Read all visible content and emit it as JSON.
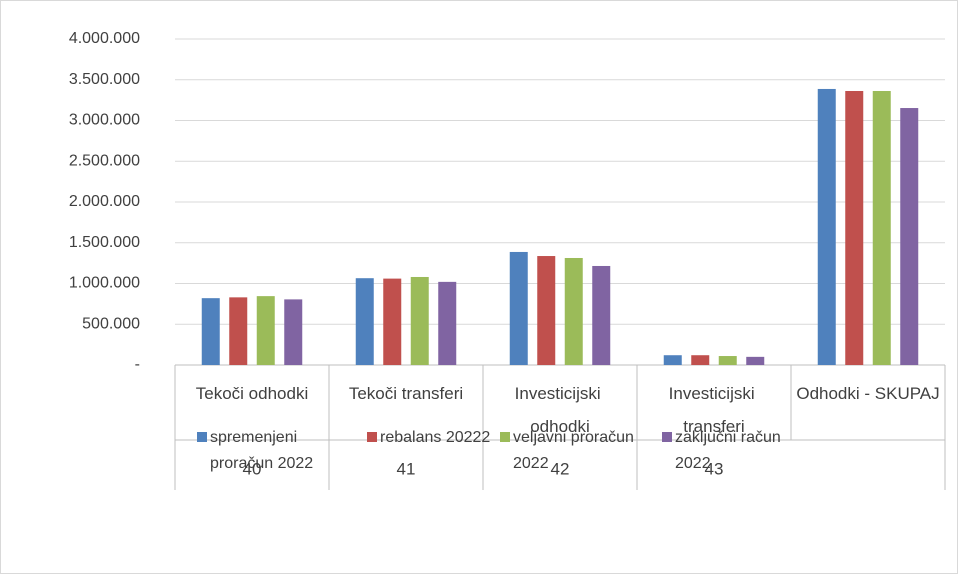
{
  "chart_data": {
    "type": "bar",
    "categories": [
      "Tekoči odhodki",
      "Tekoči transferi",
      "Investicijski odhodki",
      "Investicijski transferi",
      "Odhodki - SKUPAJ"
    ],
    "outer_categories": [
      "40",
      "41",
      "42",
      "43",
      null
    ],
    "series": [
      {
        "name": "spremenjeni proračun 2022",
        "color": "#4f81bd",
        "values": [
          820000,
          1065000,
          1387000,
          120000,
          3387000
        ]
      },
      {
        "name": "rebalans 20222",
        "color": "#c0504d",
        "values": [
          830000,
          1060000,
          1337000,
          120000,
          3362000
        ]
      },
      {
        "name": "veljavni proračun 2022",
        "color": "#9bbb59",
        "values": [
          845000,
          1080000,
          1313000,
          110000,
          3362000
        ]
      },
      {
        "name": "zaključni račun 2022",
        "color": "#8064a2",
        "values": [
          805000,
          1020000,
          1215000,
          100000,
          3153000
        ]
      }
    ],
    "ylim": [
      0,
      4000000
    ],
    "yticks": [
      {
        "value": 0,
        "label": "-"
      },
      {
        "value": 500000,
        "label": "500.000"
      },
      {
        "value": 1000000,
        "label": "1.000.000"
      },
      {
        "value": 1500000,
        "label": "1.500.000"
      },
      {
        "value": 2000000,
        "label": "2.000.000"
      },
      {
        "value": 2500000,
        "label": "2.500.000"
      },
      {
        "value": 3000000,
        "label": "3.000.000"
      },
      {
        "value": 3500000,
        "label": "3.500.000"
      },
      {
        "value": 4000000,
        "label": "4.000.000"
      }
    ],
    "grid": true,
    "legend": "bottom"
  }
}
